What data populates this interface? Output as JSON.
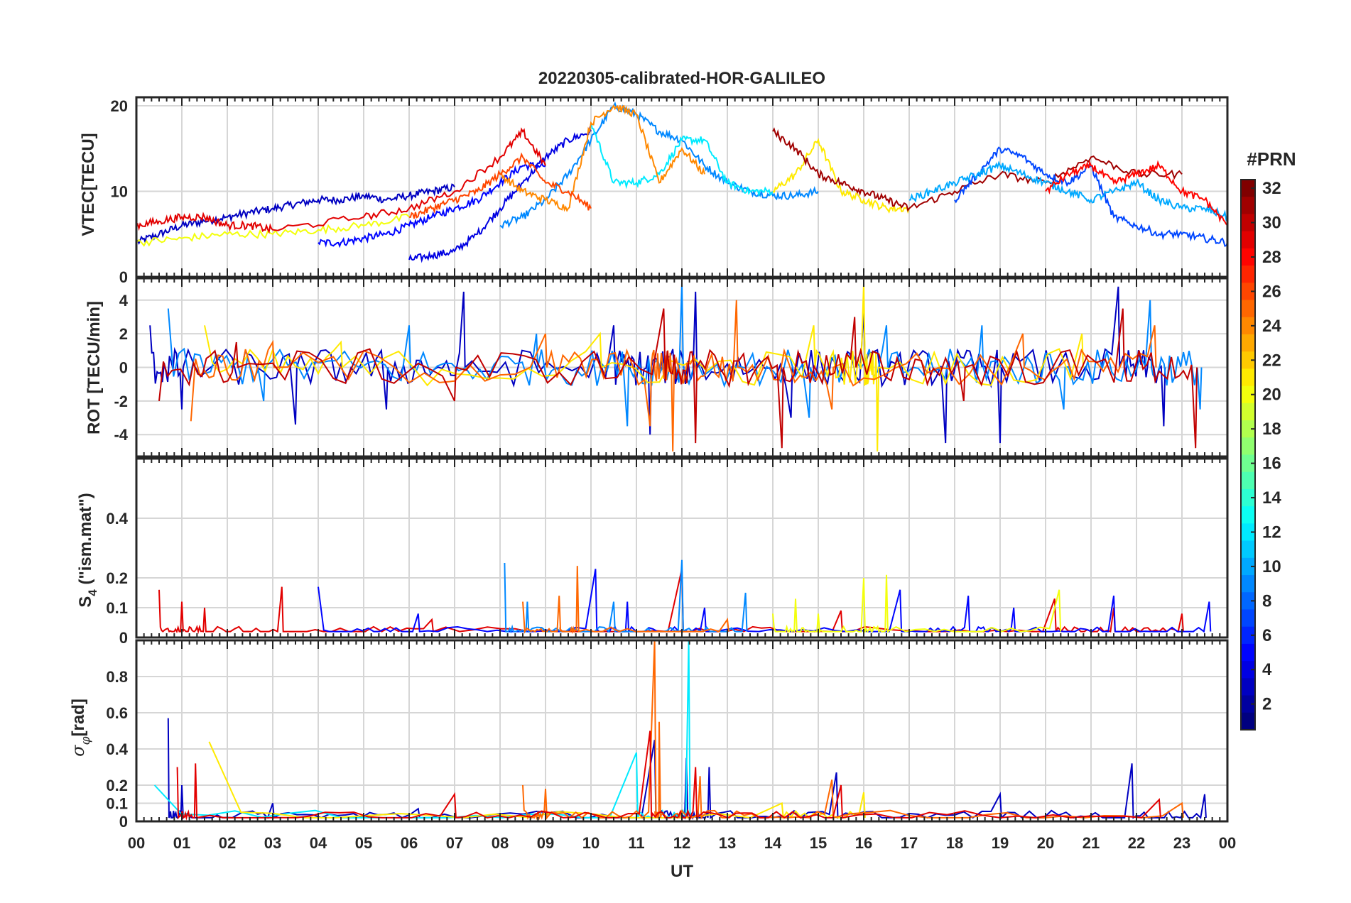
{
  "figure": {
    "title": "20220305-calibrated-HOR-GALILEO",
    "xlabel": "UT",
    "x_tick_labels": [
      "00",
      "01",
      "02",
      "03",
      "04",
      "05",
      "06",
      "07",
      "08",
      "09",
      "10",
      "11",
      "12",
      "13",
      "14",
      "15",
      "16",
      "17",
      "18",
      "19",
      "20",
      "21",
      "22",
      "23",
      "00"
    ]
  },
  "colorbar": {
    "title": "#PRN",
    "colormap": "jet",
    "range": [
      1,
      32
    ],
    "tick_labels": [
      "2",
      "4",
      "6",
      "8",
      "10",
      "12",
      "14",
      "16",
      "18",
      "20",
      "22",
      "24",
      "26",
      "28",
      "30",
      "32"
    ]
  },
  "chart_data": [
    {
      "type": "line",
      "id": "vtec",
      "ylabel": "VTEC[TECU]",
      "x_unit": "UT hour",
      "xlim": [
        0,
        24
      ],
      "ylim": [
        0,
        21
      ],
      "yticks": [
        0,
        10,
        20
      ],
      "ytick_labels": [
        "0",
        "10",
        "20"
      ],
      "series": [
        {
          "prn": 3,
          "x": [
            0,
            0.5,
            1,
            1.5,
            2,
            2.5,
            3,
            3.5,
            4,
            4.5,
            5,
            5.5,
            6,
            6.5,
            7
          ],
          "y": [
            4,
            5,
            6,
            6.5,
            7,
            7.5,
            8,
            8.5,
            9,
            9,
            9.5,
            9,
            9.5,
            10,
            10.5
          ]
        },
        {
          "prn": 5,
          "x": [
            4,
            4.5,
            5,
            5.5,
            6,
            6.5,
            7,
            7.5,
            8,
            8.5,
            9
          ],
          "y": [
            4,
            4,
            4.5,
            5,
            6,
            7,
            8,
            9,
            11,
            13,
            13
          ]
        },
        {
          "prn": 4,
          "x": [
            6,
            6.5,
            7,
            7.5,
            8,
            8.5,
            9,
            9.5,
            10
          ],
          "y": [
            2,
            2.5,
            3,
            5,
            8,
            11,
            14,
            16,
            17
          ]
        },
        {
          "prn": 9,
          "x": [
            8,
            8.5,
            9,
            9.5,
            10,
            10.5,
            11,
            11.5,
            12,
            12.5,
            13,
            13.5,
            14,
            14.5,
            15
          ],
          "y": [
            6,
            7,
            9,
            12,
            16,
            20,
            19,
            17,
            16,
            13,
            11,
            10,
            9.5,
            9.5,
            10
          ]
        },
        {
          "prn": 12,
          "x": [
            10,
            10.5,
            11,
            11.5,
            12,
            12.5,
            13,
            13.5,
            14
          ],
          "y": [
            18,
            11,
            11,
            12,
            16,
            16,
            11,
            10,
            10
          ]
        },
        {
          "prn": 20,
          "x": [
            0,
            1,
            2,
            3,
            4,
            5,
            6
          ],
          "y": [
            4,
            4.5,
            5,
            5,
            5.5,
            6,
            7
          ]
        },
        {
          "prn": 21,
          "x": [
            14,
            14.5,
            15,
            15.5,
            16,
            16.5,
            17
          ],
          "y": [
            10,
            12,
            16,
            10,
            9,
            8,
            8
          ]
        },
        {
          "prn": 24,
          "x": [
            8,
            8.5,
            9,
            9.5,
            10,
            10.5,
            11,
            11.5,
            12,
            12.5
          ],
          "y": [
            12,
            10,
            9,
            8,
            18,
            20,
            19,
            11,
            15,
            12
          ]
        },
        {
          "prn": 26,
          "x": [
            6,
            6.5,
            7,
            7.5,
            8,
            8.5,
            9,
            9.5,
            10
          ],
          "y": [
            7,
            8,
            9,
            10,
            12,
            14,
            11,
            10,
            8
          ]
        },
        {
          "prn": 29,
          "x": [
            0,
            0.5,
            1,
            1.5,
            2,
            2.5,
            3,
            5,
            6,
            7,
            8,
            8.5,
            9
          ],
          "y": [
            6,
            6.5,
            7,
            7,
            6,
            6,
            5.5,
            7,
            8,
            10,
            14,
            17,
            13
          ]
        },
        {
          "prn": 31,
          "x": [
            14,
            14.5,
            15,
            15.5,
            16,
            16.5,
            17,
            18,
            19,
            20,
            21,
            22,
            23
          ],
          "y": [
            17,
            15,
            12,
            11,
            10,
            9,
            8,
            10,
            12,
            11,
            14,
            12,
            12
          ]
        },
        {
          "prn": 7,
          "x": [
            18,
            18.5,
            19,
            19.5,
            20,
            20.5,
            21,
            21.5,
            22,
            22.5,
            23,
            23.5,
            24
          ],
          "y": [
            9,
            12,
            15,
            14,
            12,
            11,
            13,
            7,
            6,
            5,
            5,
            4.5,
            4
          ]
        },
        {
          "prn": 10,
          "x": [
            17,
            17.5,
            18,
            18.5,
            19,
            19.5,
            20,
            20.5,
            21,
            21.5,
            22,
            22.5,
            23,
            23.5,
            24
          ],
          "y": [
            9,
            10,
            11,
            12,
            13,
            12,
            11,
            10,
            9,
            10,
            11,
            9,
            8,
            8,
            7
          ]
        },
        {
          "prn": 28,
          "x": [
            20,
            20.5,
            21,
            21.5,
            22,
            22.5,
            23,
            23.5,
            24
          ],
          "y": [
            10,
            12,
            13,
            11,
            12,
            13,
            10,
            9,
            6
          ]
        }
      ]
    },
    {
      "type": "line",
      "id": "rot",
      "ylabel": "ROT [TECU/min]",
      "x_unit": "UT hour",
      "xlim": [
        0,
        24
      ],
      "ylim": [
        -5.3,
        5.3
      ],
      "yticks": [
        -4,
        -2,
        0,
        2,
        4
      ],
      "ytick_labels": [
        "-4",
        "-2",
        "0",
        "2",
        "4"
      ],
      "series": [
        {
          "prn": 3,
          "x": [
            0.3,
            1.0,
            3.5,
            5.5,
            7.2,
            10.5,
            11.3,
            12.3,
            14.4,
            16.0,
            17.8,
            19.0,
            21.6,
            22.6
          ],
          "y": [
            2.5,
            -2.5,
            -3.4,
            -2.5,
            4.5,
            2.5,
            -4,
            4.5,
            -3,
            3.5,
            -4.5,
            -4.5,
            4.8,
            -3.5
          ]
        },
        {
          "prn": 9,
          "x": [
            0.7,
            2.8,
            6.0,
            8.8,
            10.8,
            12.0,
            14.8,
            16.5,
            18.6,
            20.4,
            22.3,
            23.4
          ],
          "y": [
            3.5,
            -2.0,
            2.5,
            2.0,
            -3.5,
            5,
            -3,
            2.5,
            2.5,
            -2.5,
            4.0,
            -2.5
          ]
        },
        {
          "prn": 21,
          "x": [
            1.5,
            4.5,
            10.2,
            14.9,
            16.0,
            16.3,
            20.8
          ],
          "y": [
            2.5,
            1.5,
            2.0,
            2.5,
            5.0,
            -5.0,
            2.0
          ]
        },
        {
          "prn": 25,
          "x": [
            1.2,
            3.0,
            9.0,
            11.3,
            11.8,
            13.2,
            15.3,
            19.5,
            22.4
          ],
          "y": [
            -3.2,
            1.5,
            2.0,
            -3.5,
            -5.0,
            4.0,
            -2.5,
            2.0,
            2.5
          ]
        },
        {
          "prn": 30,
          "x": [
            0.5,
            2.2,
            7.0,
            11.6,
            12.3,
            14.2,
            15.8,
            18.2,
            21.7,
            23.3
          ],
          "y": [
            -2.0,
            1.5,
            -2.0,
            3.5,
            -4.5,
            -4.8,
            3.0,
            -2.0,
            3.5,
            -4.8
          ]
        }
      ]
    },
    {
      "type": "line",
      "id": "s4",
      "ylabel": "S4 (\"ism.mat\")",
      "ylabel_main": "S",
      "ylabel_sub": "4",
      "ylabel_rest": " (\"ism.mat\")",
      "x_unit": "UT hour",
      "xlim": [
        0,
        24
      ],
      "ylim": [
        0,
        0.6
      ],
      "yticks": [
        0,
        0.1,
        0.2,
        0.4
      ],
      "ytick_labels": [
        "0",
        "0.1",
        "0.2",
        "0.4"
      ],
      "series": [
        {
          "prn": 29,
          "x": [
            0.5,
            1.0,
            1.5,
            3.2,
            6.5,
            12.0,
            15.5,
            20.2,
            21.5,
            23.0
          ],
          "y": [
            0.16,
            0.12,
            0.1,
            0.17,
            0.06,
            0.23,
            0.09,
            0.13,
            0.1,
            0.08
          ]
        },
        {
          "prn": 5,
          "x": [
            4.0,
            6.2,
            10.1,
            10.8,
            12.5,
            16.8,
            18.3,
            19.3,
            21.5,
            23.6
          ],
          "y": [
            0.17,
            0.08,
            0.23,
            0.12,
            0.1,
            0.16,
            0.14,
            0.1,
            0.14,
            0.12
          ]
        },
        {
          "prn": 9,
          "x": [
            8.1,
            8.6,
            10.5,
            12.0,
            13.4
          ],
          "y": [
            0.25,
            0.12,
            0.12,
            0.26,
            0.15
          ]
        },
        {
          "prn": 25,
          "x": [
            8.5,
            9.3,
            9.7,
            13.0
          ],
          "y": [
            0.12,
            0.14,
            0.24,
            0.06
          ]
        },
        {
          "prn": 20,
          "x": [
            14.0,
            14.5,
            15.0,
            16.0,
            16.5,
            20.3
          ],
          "y": [
            0.08,
            0.13,
            0.08,
            0.2,
            0.21,
            0.16
          ]
        }
      ]
    },
    {
      "type": "line",
      "id": "sigma_phi",
      "ylabel": "σφ[rad]",
      "ylabel_main": "σ",
      "ylabel_sub": "φ",
      "ylabel_rest": "[rad]",
      "x_unit": "UT hour",
      "xlim": [
        0,
        24
      ],
      "ylim": [
        0,
        1
      ],
      "yticks": [
        0,
        0.1,
        0.2,
        0.4,
        0.6,
        0.8
      ],
      "ytick_labels": [
        "0",
        "0.1",
        "0.2",
        "0.4",
        "0.6",
        "0.8"
      ],
      "series": [
        {
          "prn": 3,
          "x": [
            0.7,
            1.0,
            3.0,
            6.2,
            11.4,
            12.1,
            12.6,
            15.4,
            19.0,
            21.9,
            23.5
          ],
          "y": [
            0.57,
            0.2,
            0.1,
            0.07,
            0.45,
            0.35,
            0.3,
            0.27,
            0.15,
            0.32,
            0.15
          ]
        },
        {
          "prn": 12,
          "x": [
            0.4,
            11.0,
            12.15
          ],
          "y": [
            0.2,
            0.38,
            1.0
          ]
        },
        {
          "prn": 21,
          "x": [
            1.6,
            14.2,
            16.0
          ],
          "y": [
            0.44,
            0.1,
            0.16
          ]
        },
        {
          "prn": 25,
          "x": [
            8.5,
            9.0,
            11.4,
            11.5,
            12.4,
            15.3,
            23.0
          ],
          "y": [
            0.2,
            0.18,
            1.0,
            0.55,
            0.25,
            0.23,
            0.1
          ]
        },
        {
          "prn": 29,
          "x": [
            0.9,
            1.3,
            7.0,
            11.3,
            12.3,
            15.5,
            22.5
          ],
          "y": [
            0.3,
            0.32,
            0.15,
            0.5,
            0.3,
            0.2,
            0.12
          ]
        }
      ]
    }
  ]
}
